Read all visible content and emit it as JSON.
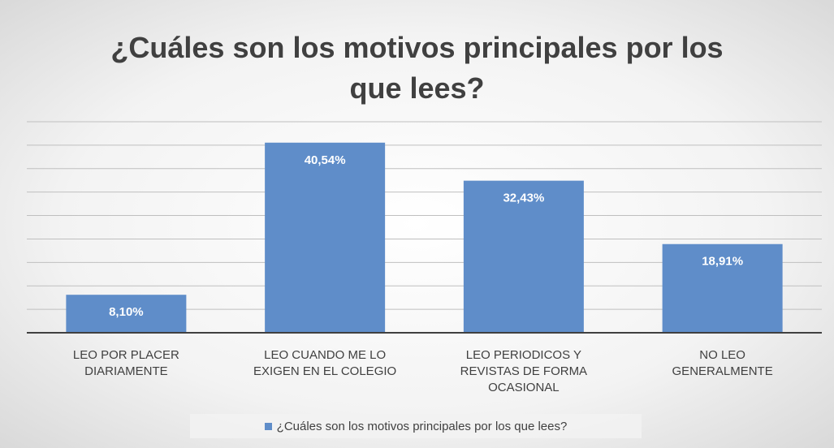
{
  "chart_data": {
    "type": "bar",
    "title": "¿Cuáles son los motivos principales por los que lees?",
    "categories": [
      "LEO POR PLACER DIARIAMENTE",
      "LEO CUANDO ME LO EXIGEN EN EL COLEGIO",
      "LEO PERIODICOS Y REVISTAS DE FORMA OCASIONAL",
      "NO LEO GENERALMENTE"
    ],
    "series": [
      {
        "name": "¿Cuáles son los motivos principales por los que lees?",
        "color": "#5f8dc9",
        "values": [
          8.1,
          40.54,
          32.43,
          18.91
        ],
        "value_labels": [
          "8,10%",
          "40,54%",
          "32,43%",
          "18,91%"
        ]
      }
    ],
    "ylim": [
      0,
      45
    ],
    "yticks": [
      0,
      5,
      10,
      15,
      20,
      25,
      30,
      35,
      40,
      45
    ],
    "grid": true,
    "legend": "bottom"
  }
}
